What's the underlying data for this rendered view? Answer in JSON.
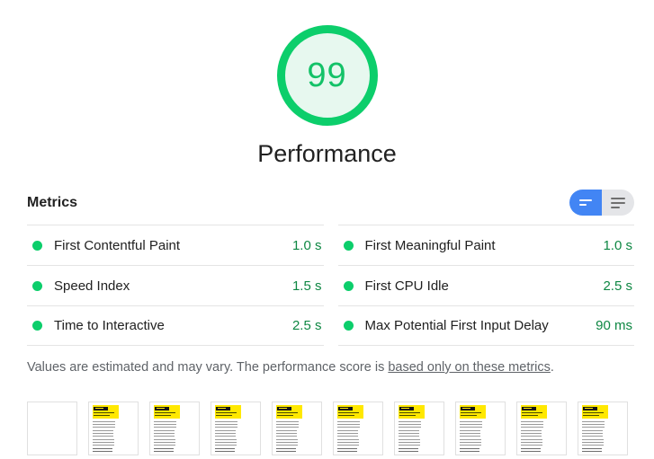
{
  "score_gauge": {
    "value": "99",
    "label": "Performance"
  },
  "metrics": {
    "heading": "Metrics",
    "view_toggle": {
      "selected": "condensed"
    },
    "rows": [
      {
        "label": "First Contentful Paint",
        "value": "1.0 s"
      },
      {
        "label": "First Meaningful Paint",
        "value": "1.0 s"
      },
      {
        "label": "Speed Index",
        "value": "1.5 s"
      },
      {
        "label": "First CPU Idle",
        "value": "2.5 s"
      },
      {
        "label": "Time to Interactive",
        "value": "2.5 s"
      },
      {
        "label": "Max Potential First Input Delay",
        "value": "90 ms"
      }
    ]
  },
  "footnote": {
    "text_before": "Values are estimated and may vary. The performance score is ",
    "link_text": "based only on these metrics",
    "text_after": "."
  },
  "filmstrip": {
    "thumbnails": [
      {
        "blank": true
      },
      {
        "blank": false
      },
      {
        "blank": false
      },
      {
        "blank": false
      },
      {
        "blank": false
      },
      {
        "blank": false
      },
      {
        "blank": false
      },
      {
        "blank": false
      },
      {
        "blank": false
      },
      {
        "blank": false
      }
    ]
  },
  "colors": {
    "pass_green": "#0cce6b",
    "gauge_fill": "#e7f8ef",
    "metric_value_green": "#0e8743",
    "toggle_active_blue": "#4285f4",
    "filmstrip_yellow": "#ffe800"
  }
}
